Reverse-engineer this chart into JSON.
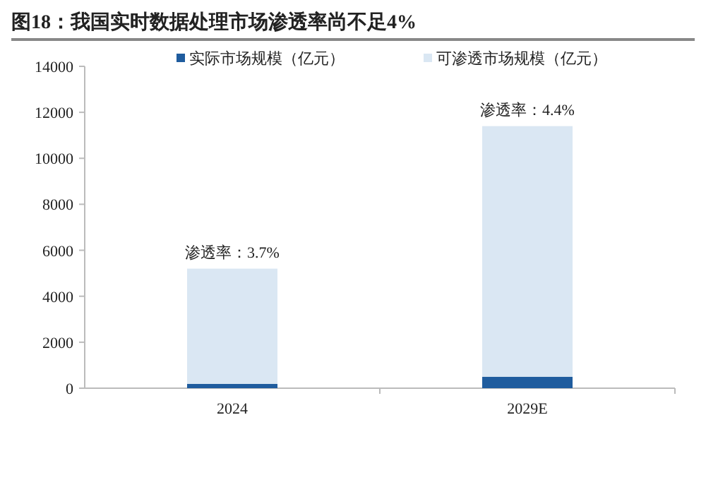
{
  "chart_data": {
    "type": "bar",
    "title": "图18：我国实时数据处理市场渗透率尚不足4%",
    "categories": [
      "2024",
      "2029E"
    ],
    "stacked": true,
    "series": [
      {
        "name": "实际市场规模（亿元）",
        "color": "#1f5c9e",
        "values": [
          190,
          500
        ]
      },
      {
        "name": "可渗透市场规模（亿元）",
        "color": "#dae7f3",
        "values": [
          5010,
          10900
        ]
      }
    ],
    "ylim": [
      0,
      14000
    ],
    "yticks": [
      0,
      2000,
      4000,
      6000,
      8000,
      10000,
      12000,
      14000
    ],
    "grid": false,
    "legend": "top",
    "annotations": [
      {
        "text": "渗透率：3.7%",
        "x": "2024",
        "y": 5200
      },
      {
        "text": "渗透率：4.4%",
        "x": "2029E",
        "y": 11400
      }
    ]
  }
}
